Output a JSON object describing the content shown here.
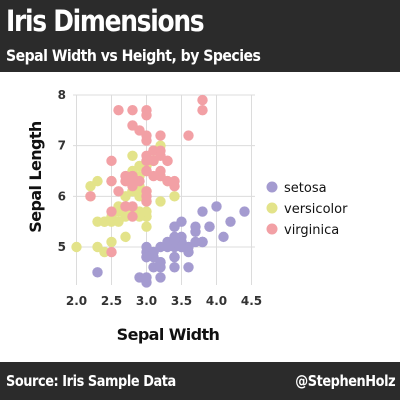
{
  "header": {
    "title": "Iris Dimensions",
    "subtitle": "Sepal Width vs Height, by Species"
  },
  "footer": {
    "source": "Source: Iris Sample Data",
    "credit": "@StephenHolz"
  },
  "chart_data": {
    "type": "scatter",
    "xlabel": "Sepal Width",
    "ylabel": "Sepal Length",
    "xlim": [
      1.95,
      4.55
    ],
    "ylim": [
      4.25,
      8.0
    ],
    "x_ticks": [
      "2.0",
      "2.5",
      "3.0",
      "3.5",
      "4.0",
      "4.5"
    ],
    "x_tick_values": [
      2.0,
      2.5,
      3.0,
      3.5,
      4.0,
      4.5
    ],
    "y_ticks": [
      "5",
      "6",
      "7",
      "8"
    ],
    "y_tick_values": [
      5,
      6,
      7,
      8
    ],
    "grid": true,
    "legend_position": "right",
    "series": [
      {
        "name": "setosa",
        "color": "#a49bd0",
        "points": [
          [
            3.5,
            5.1
          ],
          [
            3.0,
            4.9
          ],
          [
            3.2,
            4.7
          ],
          [
            3.1,
            4.6
          ],
          [
            3.6,
            5.0
          ],
          [
            3.9,
            5.4
          ],
          [
            3.4,
            4.6
          ],
          [
            3.4,
            5.0
          ],
          [
            2.9,
            4.4
          ],
          [
            3.1,
            4.9
          ],
          [
            3.7,
            5.4
          ],
          [
            3.4,
            4.8
          ],
          [
            3.0,
            4.8
          ],
          [
            3.0,
            4.3
          ],
          [
            4.0,
            5.8
          ],
          [
            4.4,
            5.7
          ],
          [
            3.9,
            5.4
          ],
          [
            3.5,
            5.1
          ],
          [
            3.8,
            5.7
          ],
          [
            3.8,
            5.1
          ],
          [
            3.4,
            5.4
          ],
          [
            3.7,
            5.1
          ],
          [
            3.6,
            4.6
          ],
          [
            3.3,
            5.1
          ],
          [
            3.4,
            4.8
          ],
          [
            3.0,
            5.0
          ],
          [
            3.4,
            5.0
          ],
          [
            3.5,
            5.2
          ],
          [
            3.4,
            5.2
          ],
          [
            3.2,
            4.7
          ],
          [
            3.1,
            4.8
          ],
          [
            3.4,
            5.4
          ],
          [
            4.1,
            5.2
          ],
          [
            4.2,
            5.5
          ],
          [
            3.1,
            4.9
          ],
          [
            3.2,
            5.0
          ],
          [
            3.5,
            5.5
          ],
          [
            3.6,
            4.9
          ],
          [
            3.0,
            4.4
          ],
          [
            3.4,
            5.1
          ],
          [
            3.5,
            5.0
          ],
          [
            2.3,
            4.5
          ],
          [
            3.2,
            4.4
          ],
          [
            3.5,
            5.0
          ],
          [
            3.8,
            5.1
          ],
          [
            3.0,
            4.8
          ],
          [
            3.8,
            5.1
          ],
          [
            3.2,
            4.6
          ],
          [
            3.7,
            5.3
          ],
          [
            3.3,
            5.0
          ]
        ]
      },
      {
        "name": "versicolor",
        "color": "#e3e38a",
        "points": [
          [
            3.2,
            7.0
          ],
          [
            3.2,
            6.4
          ],
          [
            3.1,
            6.9
          ],
          [
            2.3,
            5.5
          ],
          [
            2.8,
            6.5
          ],
          [
            2.8,
            5.7
          ],
          [
            3.3,
            6.3
          ],
          [
            2.4,
            4.9
          ],
          [
            2.9,
            6.6
          ],
          [
            2.7,
            5.2
          ],
          [
            2.0,
            5.0
          ],
          [
            3.0,
            5.9
          ],
          [
            2.2,
            6.0
          ],
          [
            2.9,
            6.1
          ],
          [
            2.9,
            5.6
          ],
          [
            3.1,
            6.7
          ],
          [
            3.0,
            5.6
          ],
          [
            2.7,
            5.8
          ],
          [
            2.2,
            6.2
          ],
          [
            2.5,
            5.6
          ],
          [
            3.2,
            5.9
          ],
          [
            2.8,
            6.1
          ],
          [
            2.5,
            6.3
          ],
          [
            2.8,
            6.1
          ],
          [
            2.9,
            6.4
          ],
          [
            3.0,
            6.6
          ],
          [
            2.8,
            6.8
          ],
          [
            3.0,
            6.7
          ],
          [
            2.9,
            6.0
          ],
          [
            2.6,
            5.7
          ],
          [
            2.4,
            5.5
          ],
          [
            2.4,
            5.5
          ],
          [
            2.7,
            5.8
          ],
          [
            2.7,
            6.0
          ],
          [
            3.0,
            5.4
          ],
          [
            3.4,
            6.0
          ],
          [
            3.1,
            6.7
          ],
          [
            2.3,
            6.3
          ],
          [
            3.0,
            5.6
          ],
          [
            2.5,
            5.5
          ],
          [
            2.6,
            5.5
          ],
          [
            3.0,
            6.1
          ],
          [
            2.6,
            5.8
          ],
          [
            2.3,
            5.0
          ],
          [
            2.7,
            5.6
          ],
          [
            3.0,
            5.7
          ],
          [
            2.9,
            5.7
          ],
          [
            2.9,
            6.2
          ],
          [
            2.5,
            5.1
          ],
          [
            2.8,
            5.7
          ]
        ]
      },
      {
        "name": "virginica",
        "color": "#f2a0a5",
        "points": [
          [
            3.3,
            6.3
          ],
          [
            2.7,
            5.8
          ],
          [
            3.0,
            7.1
          ],
          [
            2.9,
            6.3
          ],
          [
            3.0,
            6.5
          ],
          [
            3.0,
            7.6
          ],
          [
            2.5,
            4.9
          ],
          [
            2.9,
            7.3
          ],
          [
            2.5,
            6.7
          ],
          [
            3.6,
            7.2
          ],
          [
            3.2,
            6.5
          ],
          [
            2.7,
            6.4
          ],
          [
            3.0,
            6.8
          ],
          [
            2.5,
            5.7
          ],
          [
            2.8,
            5.8
          ],
          [
            3.2,
            6.4
          ],
          [
            3.0,
            6.5
          ],
          [
            3.8,
            7.7
          ],
          [
            2.6,
            7.7
          ],
          [
            2.2,
            6.0
          ],
          [
            3.2,
            6.9
          ],
          [
            2.8,
            5.6
          ],
          [
            2.8,
            7.7
          ],
          [
            2.7,
            6.3
          ],
          [
            3.3,
            6.7
          ],
          [
            3.2,
            7.2
          ],
          [
            2.8,
            6.2
          ],
          [
            3.0,
            6.1
          ],
          [
            2.8,
            6.4
          ],
          [
            3.0,
            7.2
          ],
          [
            2.8,
            7.4
          ],
          [
            3.8,
            7.9
          ],
          [
            2.8,
            6.4
          ],
          [
            2.8,
            6.3
          ],
          [
            2.6,
            6.1
          ],
          [
            3.0,
            7.7
          ],
          [
            3.4,
            6.3
          ],
          [
            3.1,
            6.4
          ],
          [
            3.0,
            6.0
          ],
          [
            3.1,
            6.9
          ],
          [
            3.1,
            6.7
          ],
          [
            3.1,
            6.9
          ],
          [
            2.7,
            5.8
          ],
          [
            3.2,
            6.8
          ],
          [
            3.3,
            6.7
          ],
          [
            3.0,
            6.7
          ],
          [
            2.5,
            6.3
          ],
          [
            3.0,
            6.5
          ],
          [
            3.4,
            6.2
          ],
          [
            3.0,
            5.9
          ]
        ]
      }
    ]
  }
}
